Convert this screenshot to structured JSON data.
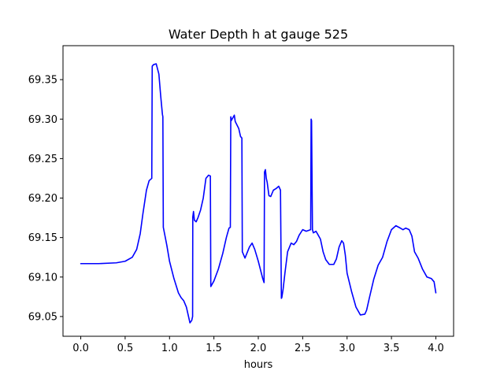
{
  "chart_data": {
    "type": "line",
    "title": "Water Depth h at gauge 525",
    "xlabel": "hours",
    "ylabel": "",
    "xlim": [
      -0.2,
      4.2
    ],
    "ylim": [
      69.025,
      69.393
    ],
    "grid": false,
    "x_ticks": [
      0.0,
      0.5,
      1.0,
      1.5,
      2.0,
      2.5,
      3.0,
      3.5,
      4.0
    ],
    "x_tick_labels": [
      "0.0",
      "0.5",
      "1.0",
      "1.5",
      "2.0",
      "2.5",
      "3.0",
      "3.5",
      "4.0"
    ],
    "y_ticks": [
      69.05,
      69.1,
      69.15,
      69.2,
      69.25,
      69.3,
      69.35
    ],
    "y_tick_labels": [
      "69.05",
      "69.10",
      "69.15",
      "69.20",
      "69.25",
      "69.30",
      "69.35"
    ],
    "series": [
      {
        "color": "#0000ff",
        "x": [
          0.0,
          0.2,
          0.4,
          0.5,
          0.58,
          0.63,
          0.67,
          0.7,
          0.74,
          0.77,
          0.8,
          0.805,
          0.82,
          0.85,
          0.88,
          0.9,
          0.92,
          0.925,
          0.93,
          0.97,
          1.0,
          1.05,
          1.1,
          1.13,
          1.16,
          1.19,
          1.21,
          1.23,
          1.25,
          1.26,
          1.262,
          1.27,
          1.28,
          1.3,
          1.32,
          1.35,
          1.38,
          1.41,
          1.44,
          1.46,
          1.465,
          1.5,
          1.55,
          1.6,
          1.64,
          1.67,
          1.685,
          1.69,
          1.695,
          1.72,
          1.73,
          1.74,
          1.78,
          1.8,
          1.815,
          1.82,
          1.85,
          1.9,
          1.93,
          1.96,
          2.0,
          2.05,
          2.065,
          2.07,
          2.08,
          2.09,
          2.1,
          2.12,
          2.14,
          2.17,
          2.2,
          2.23,
          2.25,
          2.26,
          2.265,
          2.28,
          2.3,
          2.33,
          2.37,
          2.4,
          2.43,
          2.46,
          2.5,
          2.54,
          2.59,
          2.595,
          2.6,
          2.61,
          2.62,
          2.65,
          2.7,
          2.73,
          2.76,
          2.8,
          2.85,
          2.88,
          2.91,
          2.94,
          2.96,
          2.98,
          3.0,
          3.05,
          3.1,
          3.15,
          3.2,
          3.22,
          3.25,
          3.3,
          3.35,
          3.4,
          3.45,
          3.5,
          3.55,
          3.6,
          3.63,
          3.66,
          3.7,
          3.73,
          3.76,
          3.8,
          3.85,
          3.9,
          3.95,
          3.98,
          4.0
        ],
        "y": [
          69.117,
          69.117,
          69.118,
          69.12,
          69.125,
          69.135,
          69.155,
          69.18,
          69.21,
          69.222,
          69.225,
          69.367,
          69.369,
          69.37,
          69.357,
          69.33,
          69.306,
          69.303,
          69.163,
          69.14,
          69.12,
          69.098,
          69.08,
          69.074,
          69.07,
          69.062,
          69.052,
          69.042,
          69.045,
          69.05,
          69.176,
          69.183,
          69.172,
          69.17,
          69.175,
          69.185,
          69.2,
          69.225,
          69.229,
          69.228,
          69.088,
          69.095,
          69.11,
          69.13,
          69.15,
          69.162,
          69.163,
          69.303,
          69.298,
          69.303,
          69.305,
          69.297,
          69.288,
          69.278,
          69.276,
          69.132,
          69.124,
          69.138,
          69.143,
          69.135,
          69.12,
          69.098,
          69.093,
          69.233,
          69.236,
          69.225,
          69.22,
          69.203,
          69.202,
          69.21,
          69.212,
          69.215,
          69.21,
          69.073,
          69.074,
          69.085,
          69.105,
          69.132,
          69.143,
          69.141,
          69.145,
          69.153,
          69.16,
          69.158,
          69.16,
          69.3,
          69.298,
          69.16,
          69.156,
          69.158,
          69.148,
          69.132,
          69.122,
          69.116,
          69.116,
          69.123,
          69.138,
          69.146,
          69.143,
          69.128,
          69.105,
          69.082,
          69.062,
          69.052,
          69.053,
          69.058,
          69.073,
          69.097,
          69.115,
          69.125,
          69.145,
          69.16,
          69.165,
          69.162,
          69.16,
          69.162,
          69.16,
          69.152,
          69.132,
          69.124,
          69.11,
          69.1,
          69.098,
          69.094,
          69.08
        ]
      }
    ]
  }
}
